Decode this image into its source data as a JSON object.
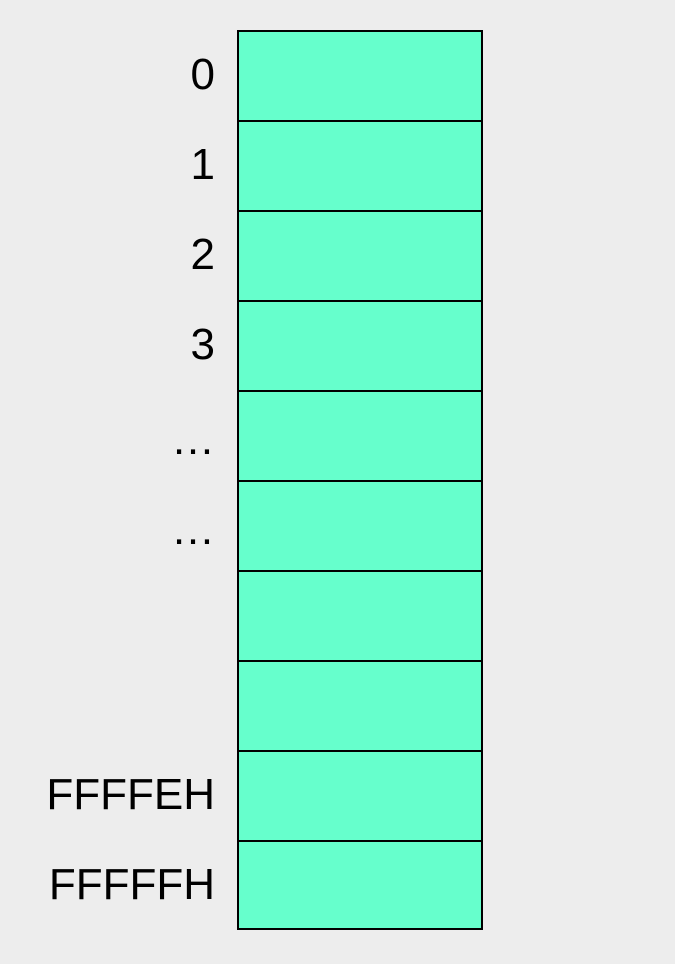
{
  "memory": {
    "cell_color": "#66ffcc",
    "border_color": "#000000",
    "background_color": "#ededed",
    "cells": [
      {
        "address": "0"
      },
      {
        "address": "1"
      },
      {
        "address": "2"
      },
      {
        "address": "3"
      },
      {
        "address": "…"
      },
      {
        "address": "…"
      },
      {
        "address": ""
      },
      {
        "address": ""
      },
      {
        "address": "FFFFEH"
      },
      {
        "address": "FFFFFH"
      }
    ]
  }
}
